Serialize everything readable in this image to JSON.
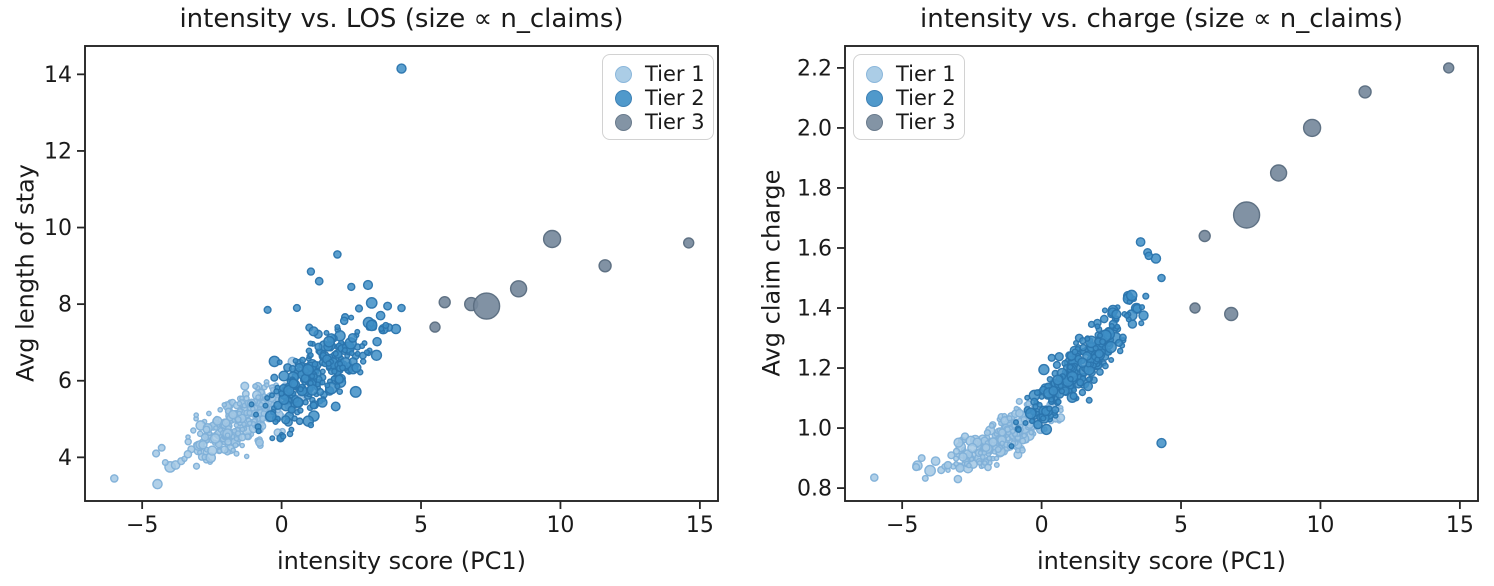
{
  "figure": {
    "background": "#ffffff",
    "frame_color": "#262626",
    "text_color": "#1a1a1a"
  },
  "chart_data": {
    "type": "scatter",
    "description": "Two-panel bubble scatter; both panels share hospital-level x (intensity score PC1) and bubble size (n_claims); left panel y = avg length of stay, right panel y = avg claim charge.",
    "xlabel": "intensity score (PC1)",
    "xlim": [
      -7.05,
      15.65
    ],
    "xtick_values": [
      -5,
      0,
      5,
      10,
      15
    ],
    "xtick_labels": [
      "−5",
      "0",
      "5",
      "10",
      "15"
    ],
    "grid": false,
    "panels": [
      {
        "id": "los",
        "title": "intensity vs. LOS (size ∝ n_claims)",
        "ylabel": "Avg length of stay",
        "y_index": 2,
        "ylim": [
          2.86,
          14.74
        ],
        "ytick_values": [
          4,
          6,
          8,
          10,
          12,
          14
        ],
        "ytick_labels": [
          "4",
          "6",
          "8",
          "10",
          "12",
          "14"
        ],
        "legend_position": "top-right"
      },
      {
        "id": "charge",
        "title": "intensity vs. charge (size ∝ n_claims)",
        "ylabel": "Avg claim charge",
        "y_index": 3,
        "ylim": [
          0.757,
          2.273
        ],
        "ytick_values": [
          0.8,
          1.0,
          1.2,
          1.4,
          1.6,
          1.8,
          2.0,
          2.2
        ],
        "ytick_labels": [
          "0.8",
          "1.0",
          "1.2",
          "1.4",
          "1.6",
          "1.8",
          "2.0",
          "2.2"
        ],
        "legend_position": "top-left"
      }
    ],
    "legend": {
      "entries": [
        {
          "label": "Tier 1",
          "tier": "1"
        },
        {
          "label": "Tier 2",
          "tier": "2"
        },
        {
          "label": "Tier 3",
          "tier": "3"
        }
      ]
    },
    "tiers": {
      "1": {
        "name": "Tier 1",
        "fill": "#a3c8e4",
        "edge": "#7fb0d8",
        "fill_opacity": 0.85
      },
      "2": {
        "name": "Tier 2",
        "fill": "#3e8ec6",
        "edge": "#2a74ad",
        "fill_opacity": 0.85
      },
      "3": {
        "name": "Tier 3",
        "fill": "#76899c",
        "edge": "#5a6d80",
        "fill_opacity": 0.92
      }
    },
    "points_format": [
      "tier",
      "intensity_pc1",
      "avg_length_of_stay",
      "avg_claim_charge",
      "bubble_radius_px"
    ],
    "points": [
      [
        3,
        5.5,
        7.4,
        1.4,
        5.0
      ],
      [
        3,
        5.85,
        8.05,
        1.64,
        5.5
      ],
      [
        3,
        6.8,
        8.0,
        1.38,
        6.5
      ],
      [
        3,
        7.35,
        7.95,
        1.71,
        13.0
      ],
      [
        3,
        8.5,
        8.4,
        1.85,
        8.0
      ],
      [
        3,
        9.7,
        9.7,
        2.0,
        8.5
      ],
      [
        3,
        11.6,
        9.0,
        2.12,
        6.0
      ],
      [
        3,
        14.6,
        9.6,
        2.2,
        5.0
      ],
      [
        2,
        4.3,
        14.15,
        0.95,
        4.5
      ],
      [
        1,
        -6.0,
        3.45,
        0.835,
        3.6
      ],
      [
        1,
        -4.45,
        3.3,
        0.875,
        4.6
      ],
      [
        1,
        -4.0,
        3.75,
        0.858,
        5.2
      ],
      [
        1,
        -3.8,
        3.8,
        0.89,
        4.2
      ],
      [
        1,
        -4.5,
        4.1,
        0.87,
        3.4
      ],
      [
        1,
        -3.6,
        3.9,
        0.86,
        3.4
      ],
      [
        1,
        -4.3,
        4.25,
        0.9,
        3.3
      ],
      [
        2,
        2.0,
        9.3,
        1.35,
        3.6
      ],
      [
        2,
        1.05,
        8.85,
        1.22,
        3.5
      ],
      [
        2,
        1.35,
        8.6,
        1.3,
        3.7
      ],
      [
        2,
        3.1,
        8.5,
        1.44,
        4.4
      ],
      [
        2,
        2.5,
        8.45,
        1.38,
        3.5
      ],
      [
        2,
        3.55,
        7.7,
        1.62,
        4.2
      ],
      [
        2,
        3.8,
        7.95,
        1.585,
        3.8
      ],
      [
        2,
        4.1,
        7.35,
        1.565,
        4.6
      ],
      [
        2,
        4.3,
        7.9,
        1.5,
        3.6
      ],
      [
        2,
        -0.5,
        7.85,
        1.06,
        3.4
      ],
      [
        2,
        0.55,
        7.9,
        1.21,
        3.4
      ]
    ],
    "cluster_generator": {
      "note": "Dense ~600-dot cluster along the diagonal, deterministic seeded approximation of unresolvable points",
      "seed": 42,
      "groups": [
        {
          "tier": 1,
          "count": 340,
          "x_mean": -1.2,
          "x_sd": 1.0,
          "x_min": -6.0,
          "x_max": 0.7,
          "los_intercept": 5.42,
          "los_slope": 0.345,
          "los_noise": 0.33,
          "los_min": 3.35,
          "los_max": 7.6,
          "charge_intercept": 1.035,
          "charge_slope": 0.048,
          "charge_noise": 0.032,
          "charge_min": 0.83,
          "charge_max": 1.28,
          "r_base": 2.1,
          "r_var": 2.6
        },
        {
          "tier": 2,
          "count": 270,
          "x_mean": 1.3,
          "x_sd": 1.0,
          "x_min": -1.2,
          "x_max": 4.45,
          "los_intercept": 5.5,
          "los_slope": 0.52,
          "los_noise": 0.52,
          "los_min": 4.5,
          "los_max": 9.35,
          "charge_intercept": 1.08,
          "charge_slope": 0.092,
          "charge_noise": 0.046,
          "charge_min": 0.94,
          "charge_max": 1.63,
          "r_base": 2.3,
          "r_var": 3.4
        }
      ]
    }
  }
}
